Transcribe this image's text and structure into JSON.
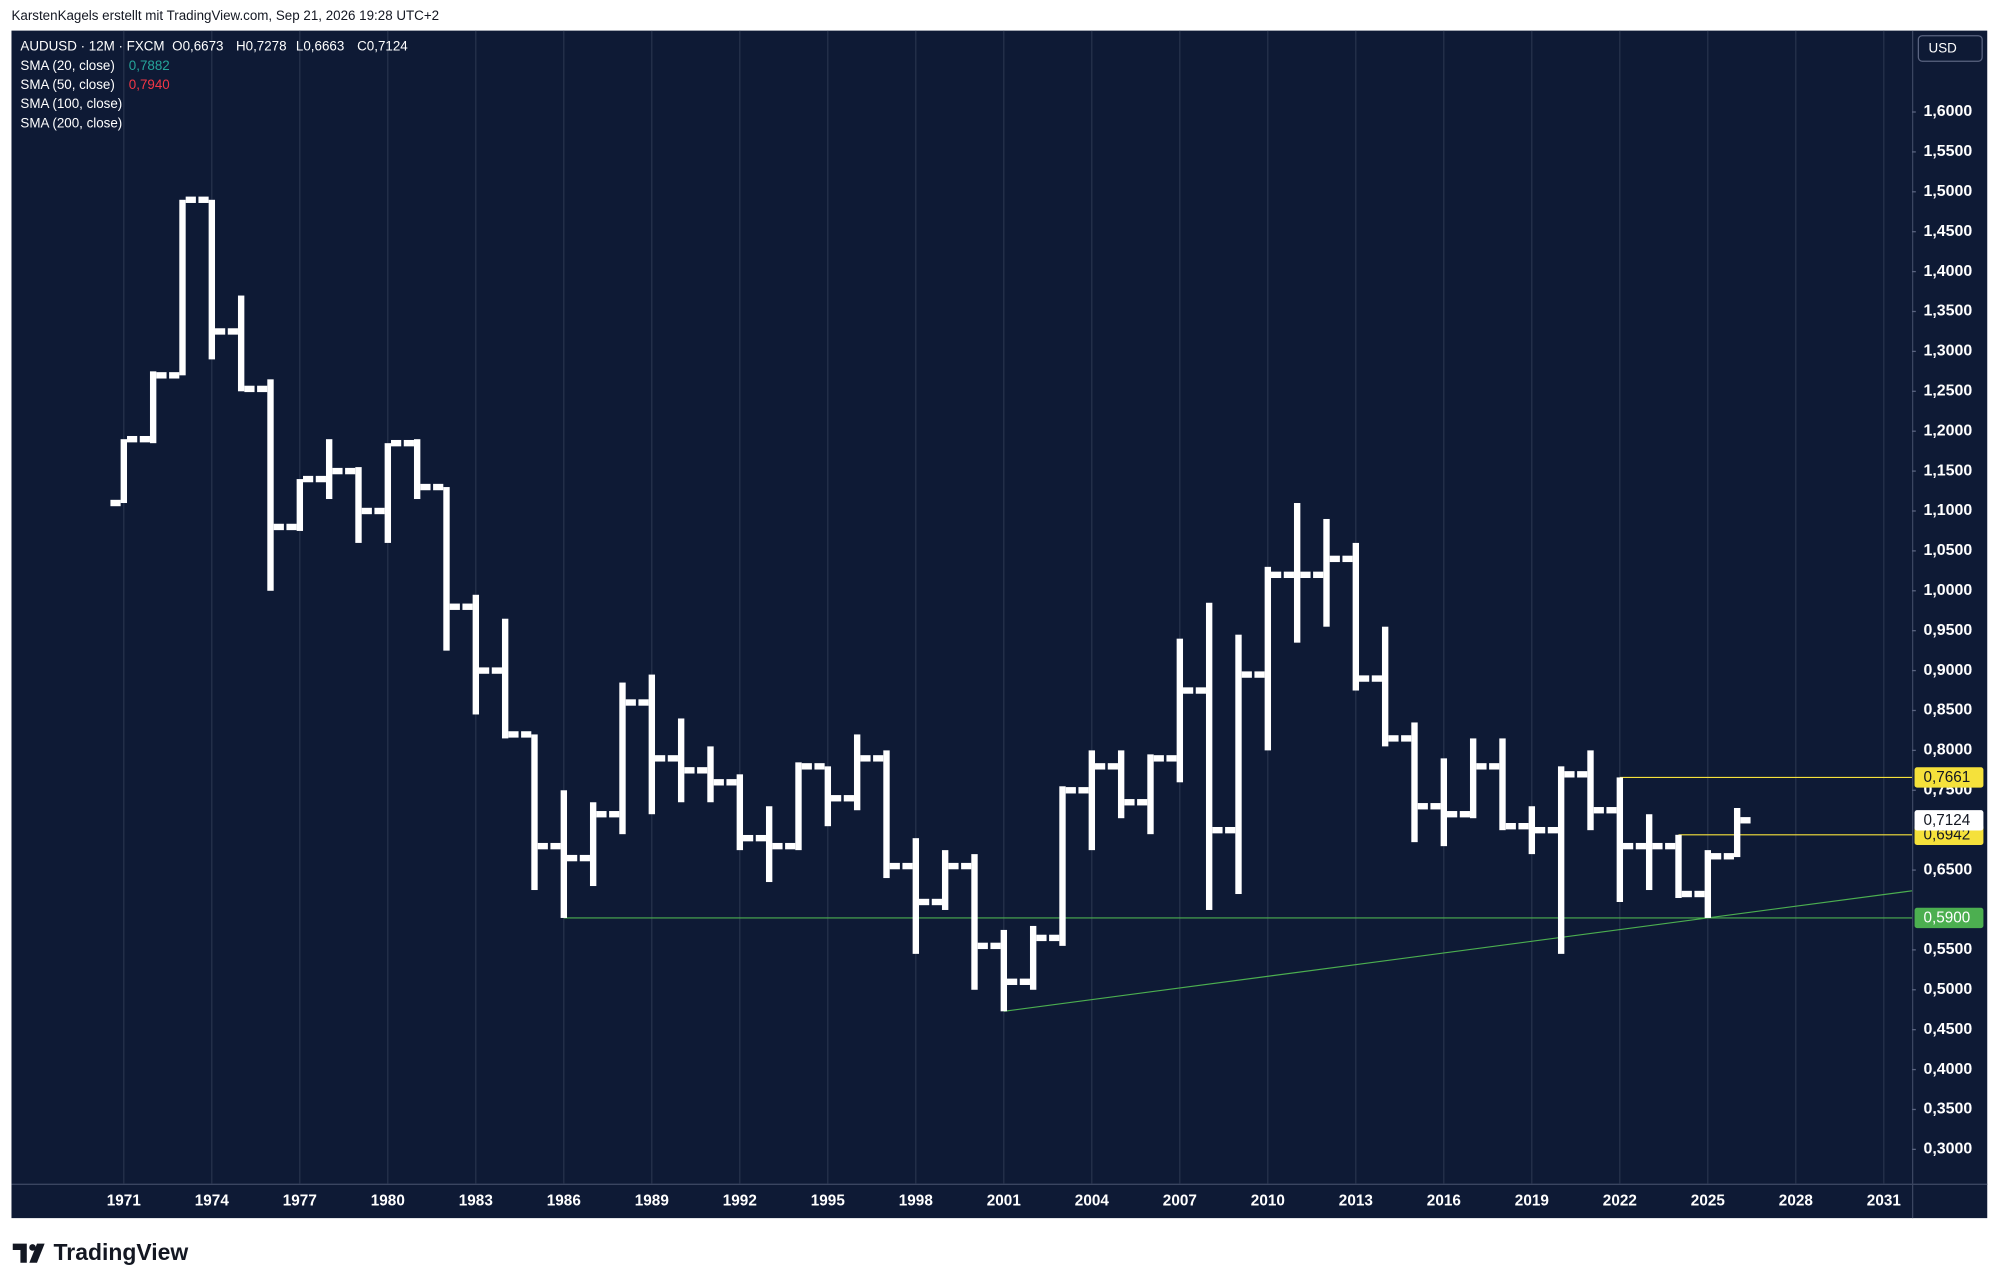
{
  "chart_data": {
    "type": "ohlc",
    "watermark": "KarstenKagels erstellt mit TradingView.com, Sep 21, 2026 19:28 UTC+2",
    "symbol": "AUDUSD · 12M · FXCM",
    "ohlc_labels": [
      "O0,6673",
      "H0,7278",
      "L0,6663",
      "C0,7124"
    ],
    "indicators": [
      {
        "name": "SMA (20, close)",
        "label": "0,7882",
        "color": "#26a69a"
      },
      {
        "name": "SMA (50, close)",
        "label": "0,7940",
        "color": "#f23645"
      },
      {
        "name": "SMA (100, close)"
      },
      {
        "name": "SMA (200, close)"
      }
    ],
    "currency": "USD",
    "brand": "TradingView",
    "color": "#ffffff",
    "grid": "vertical",
    "x": [
      1971,
      1972,
      1973,
      1974,
      1975,
      1976,
      1977,
      1978,
      1979,
      1980,
      1981,
      1982,
      1983,
      1984,
      1985,
      1986,
      1987,
      1988,
      1989,
      1990,
      1991,
      1992,
      1993,
      1994,
      1995,
      1996,
      1997,
      1998,
      1999,
      2000,
      2001,
      2002,
      2003,
      2004,
      2005,
      2006,
      2007,
      2008,
      2009,
      2010,
      2011,
      2012,
      2013,
      2014,
      2015,
      2016,
      2017,
      2018,
      2019,
      2020,
      2021,
      2022,
      2023,
      2024,
      2025,
      2026
    ],
    "open": [
      1.11,
      1.19,
      1.27,
      1.49,
      1.325,
      1.253,
      1.08,
      1.14,
      1.15,
      1.1,
      1.185,
      1.13,
      0.98,
      0.9,
      0.82,
      0.68,
      0.665,
      0.72,
      0.86,
      0.79,
      0.775,
      0.76,
      0.69,
      0.68,
      0.78,
      0.74,
      0.79,
      0.655,
      0.61,
      0.655,
      0.555,
      0.51,
      0.565,
      0.75,
      0.78,
      0.735,
      0.79,
      0.875,
      0.7,
      0.895,
      1.02,
      1.02,
      1.04,
      0.89,
      0.815,
      0.73,
      0.72,
      0.78,
      0.705,
      0.7,
      0.77,
      0.725,
      0.68,
      0.68,
      0.62,
      0.6673
    ],
    "high": [
      1.19,
      1.275,
      1.49,
      1.49,
      1.37,
      1.265,
      1.14,
      1.19,
      1.155,
      1.185,
      1.19,
      1.13,
      0.995,
      0.965,
      0.82,
      0.75,
      0.735,
      0.885,
      0.895,
      0.84,
      0.805,
      0.77,
      0.73,
      0.785,
      0.78,
      0.82,
      0.8,
      0.69,
      0.675,
      0.67,
      0.575,
      0.58,
      0.755,
      0.8,
      0.8,
      0.795,
      0.94,
      0.985,
      0.945,
      1.03,
      1.11,
      1.09,
      1.06,
      0.955,
      0.835,
      0.79,
      0.815,
      0.815,
      0.73,
      0.78,
      0.8,
      0.7661,
      0.72,
      0.6942,
      0.675,
      0.7278
    ],
    "low": [
      1.11,
      1.185,
      1.27,
      1.29,
      1.25,
      1.0,
      1.075,
      1.115,
      1.06,
      1.06,
      1.115,
      0.925,
      0.845,
      0.815,
      0.625,
      0.59,
      0.63,
      0.695,
      0.72,
      0.735,
      0.735,
      0.675,
      0.635,
      0.675,
      0.705,
      0.725,
      0.64,
      0.545,
      0.6,
      0.5,
      0.473,
      0.5,
      0.555,
      0.675,
      0.715,
      0.695,
      0.76,
      0.6,
      0.62,
      0.8,
      0.935,
      0.955,
      0.875,
      0.805,
      0.685,
      0.68,
      0.715,
      0.7,
      0.67,
      0.545,
      0.7,
      0.61,
      0.625,
      0.615,
      0.59,
      0.6663
    ],
    "close": [
      1.19,
      1.27,
      1.49,
      1.325,
      1.253,
      1.08,
      1.14,
      1.15,
      1.1,
      1.185,
      1.13,
      0.98,
      0.9,
      0.82,
      0.68,
      0.665,
      0.72,
      0.86,
      0.79,
      0.775,
      0.76,
      0.69,
      0.68,
      0.78,
      0.74,
      0.79,
      0.655,
      0.61,
      0.655,
      0.555,
      0.51,
      0.565,
      0.75,
      0.78,
      0.735,
      0.79,
      0.875,
      0.7,
      0.895,
      1.02,
      1.02,
      1.04,
      0.89,
      0.815,
      0.73,
      0.72,
      0.78,
      0.705,
      0.7,
      0.77,
      0.725,
      0.68,
      0.68,
      0.62,
      0.6673,
      0.7124
    ],
    "xlim": [
      1967.17,
      2031.96
    ],
    "xticks": [
      1971,
      1974,
      1977,
      1980,
      1983,
      1986,
      1989,
      1992,
      1995,
      1998,
      2001,
      2004,
      2007,
      2010,
      2013,
      2016,
      2019,
      2022,
      2025,
      2028,
      2031
    ],
    "ylim": [
      0.257,
      1.702
    ],
    "yticks": [
      {
        "value": 1.6,
        "label": "1,6000"
      },
      {
        "value": 1.55,
        "label": "1,5500"
      },
      {
        "value": 1.5,
        "label": "1,5000"
      },
      {
        "value": 1.45,
        "label": "1,4500"
      },
      {
        "value": 1.4,
        "label": "1,4000"
      },
      {
        "value": 1.35,
        "label": "1,3500"
      },
      {
        "value": 1.3,
        "label": "1,3000"
      },
      {
        "value": 1.25,
        "label": "1,2500"
      },
      {
        "value": 1.2,
        "label": "1,2000"
      },
      {
        "value": 1.15,
        "label": "1,1500"
      },
      {
        "value": 1.1,
        "label": "1,1000"
      },
      {
        "value": 1.05,
        "label": "1,0500"
      },
      {
        "value": 1.0,
        "label": "1,0000"
      },
      {
        "value": 0.95,
        "label": "0,9500"
      },
      {
        "value": 0.9,
        "label": "0,9000"
      },
      {
        "value": 0.85,
        "label": "0,8500"
      },
      {
        "value": 0.8,
        "label": "0,8000"
      },
      {
        "value": 0.75,
        "label": "0,7500"
      },
      {
        "value": 0.65,
        "label": "0,6500"
      },
      {
        "value": 0.55,
        "label": "0,5500"
      },
      {
        "value": 0.5,
        "label": "0,5000"
      },
      {
        "value": 0.45,
        "label": "0,4500"
      },
      {
        "value": 0.4,
        "label": "0,4000"
      },
      {
        "value": 0.35,
        "label": "0,3500"
      },
      {
        "value": 0.3,
        "label": "0,3000"
      }
    ],
    "price_lines": [
      {
        "value": 0.7661,
        "label": "0,7661",
        "color": "#f5e13b",
        "from": 2022
      },
      {
        "value": 0.6942,
        "label": "0,6942",
        "color": "#f5e13b",
        "from": 2024
      },
      {
        "value": 0.59,
        "label": "0,5900",
        "color": "#4caf50",
        "from": 1986
      }
    ],
    "last_price": {
      "value": 0.7124,
      "label": "0,7124",
      "color": "#ffffff"
    },
    "trendline": {
      "x": [
        2001,
        2031.96
      ],
      "y": [
        0.473,
        0.624
      ],
      "color": "#4caf50"
    }
  }
}
